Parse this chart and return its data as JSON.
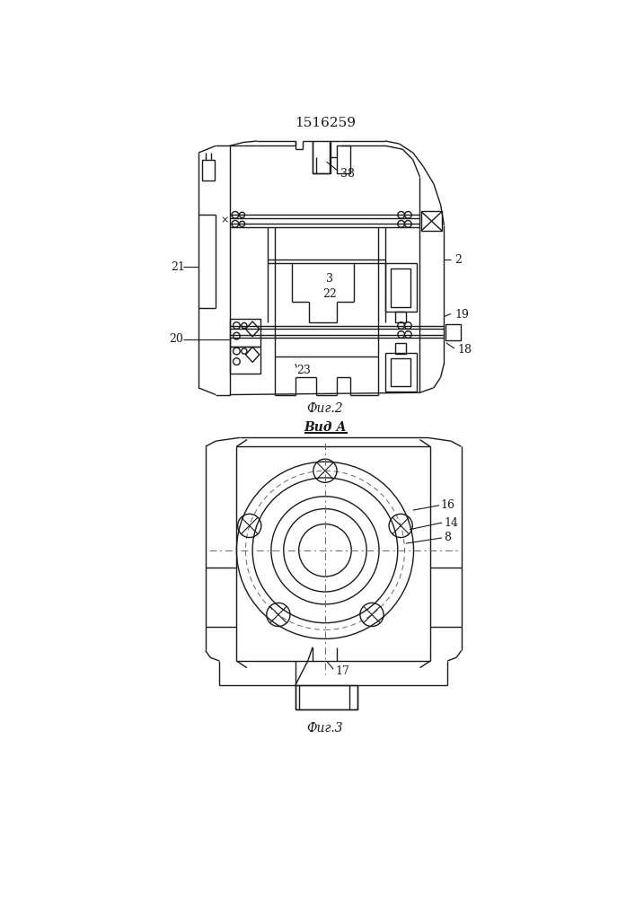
{
  "title": "1516259",
  "fig2_caption": "Фиг.2",
  "fig3_caption": "Фиг.3",
  "vid_a_label": "Вид А",
  "background_color": "#ffffff",
  "line_color": "#1a1a1a",
  "line_width": 1.0,
  "title_fontsize": 11,
  "caption_fontsize": 10
}
